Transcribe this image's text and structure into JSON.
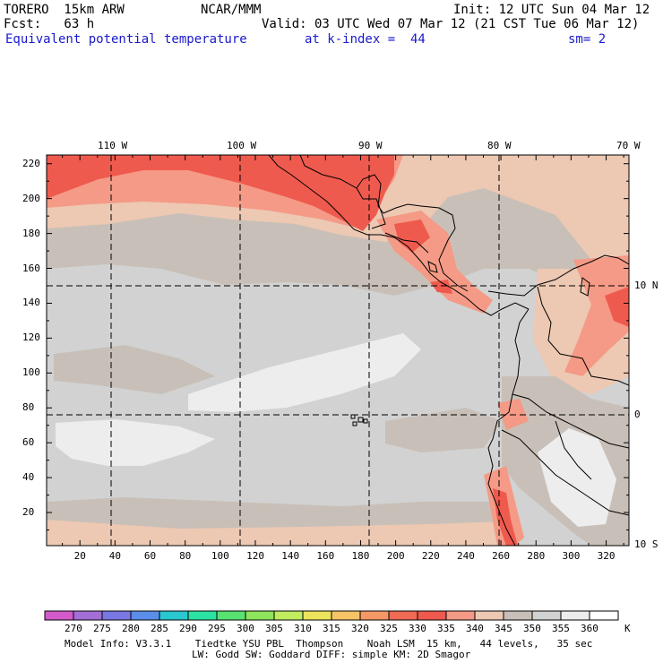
{
  "header": {
    "model": "TORERO  15km ARW",
    "center": "NCAR/MMM",
    "init": "Init: 12 UTC Sun 04 Mar 12",
    "fcst": "Fcst:   63 h",
    "valid": "Valid: 03 UTC Wed 07 Mar 12 (21 CST Tue 06 Mar 12)",
    "field": "Equivalent potential temperature",
    "level": "at k-index =  44",
    "smooth": "sm= 2"
  },
  "map": {
    "top_lon_labels": [
      "110 W",
      "100 W",
      "90 W",
      "80 W",
      "70 W"
    ],
    "right_lat_labels": [
      "10 N",
      "0",
      "10 S"
    ],
    "left_ticks": [
      "220",
      "200",
      "180",
      "160",
      "140",
      "120",
      "100",
      "80",
      "60",
      "40",
      "20"
    ],
    "bottom_ticks": [
      "20",
      "40",
      "60",
      "80",
      "100",
      "120",
      "140",
      "160",
      "180",
      "200",
      "220",
      "240",
      "260",
      "280",
      "300",
      "320"
    ],
    "grid_x_range": [
      1,
      333
    ],
    "grid_y_range": [
      1,
      225
    ],
    "colors": {
      "335": "#ef5a4e",
      "340": "#f49a86",
      "345": "#edc8b3",
      "350": "#c8c0b8",
      "355": "#d2d2d2",
      "360": "#ededed"
    }
  },
  "colorbar": {
    "levels": [
      "270",
      "275",
      "280",
      "285",
      "290",
      "295",
      "300",
      "305",
      "310",
      "315",
      "320",
      "325",
      "330",
      "335",
      "340",
      "345",
      "350",
      "355",
      "360"
    ],
    "unit": "K",
    "colors": [
      "#d35acb",
      "#a36fd6",
      "#7a78e4",
      "#5a8ee8",
      "#29c7cf",
      "#2ce2a2",
      "#58e371",
      "#8ee45a",
      "#c0ec5e",
      "#ece55c",
      "#f5c466",
      "#f59868",
      "#f06a55",
      "#ef5a4e",
      "#f49a86",
      "#edc8b3",
      "#c8c0b8",
      "#d2d2d2",
      "#ededed",
      "#ffffff"
    ]
  },
  "footer": {
    "line1": "Model Info: V3.3.1    Tiedtke YSU PBL  Thompson    Noah LSM  15 km,   44 levels,   35 sec",
    "line2": "LW: Godd SW: Goddard DIFF: simple KM: 2D Smagor"
  }
}
